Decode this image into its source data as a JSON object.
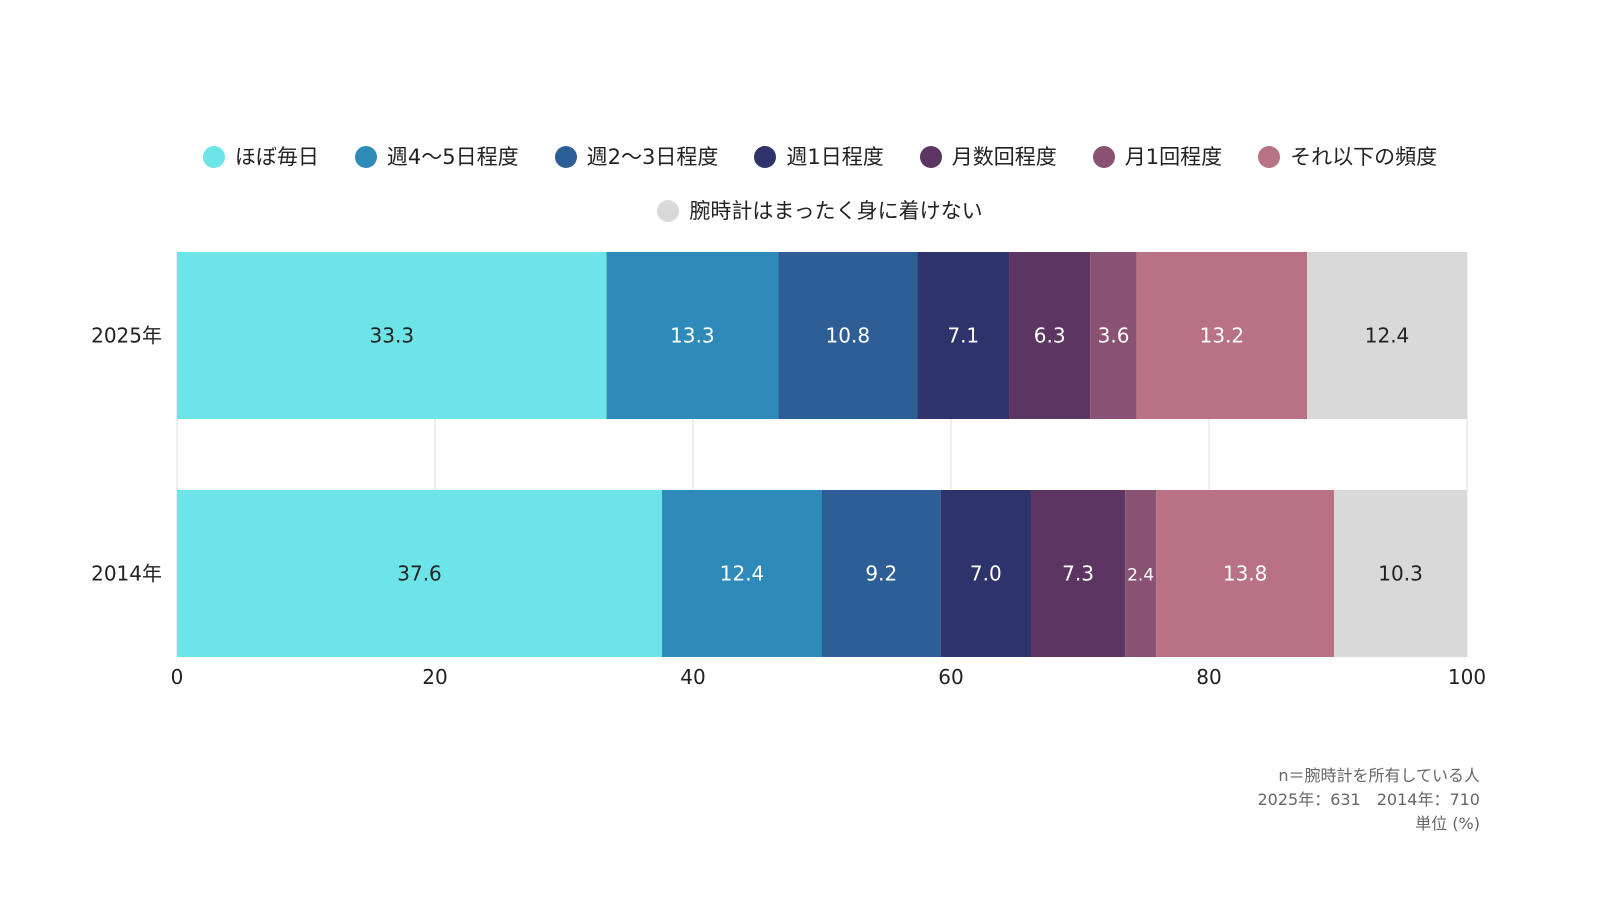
{
  "chart_data": {
    "type": "bar",
    "orientation": "horizontal",
    "stacked": true,
    "categories": [
      "2025年",
      "2014年"
    ],
    "series": [
      {
        "name": "ほぼ毎日",
        "color": "#6ce4e8",
        "label_color": "#222222",
        "values": [
          33.3,
          37.6
        ],
        "labels": [
          "33.3",
          "37.6"
        ]
      },
      {
        "name": "週4〜5日程度",
        "color": "#2e8ab8",
        "label_color": "#ffffff",
        "values": [
          13.3,
          12.4
        ],
        "labels": [
          "13.3",
          "12.4"
        ]
      },
      {
        "name": "週2〜3日程度",
        "color": "#2e5e96",
        "label_color": "#ffffff",
        "values": [
          10.8,
          9.2
        ],
        "labels": [
          "10.8",
          "9.2"
        ]
      },
      {
        "name": "週1日程度",
        "color": "#2e336b",
        "label_color": "#ffffff",
        "values": [
          7.1,
          7.0
        ],
        "labels": [
          "7.1",
          "7.0"
        ]
      },
      {
        "name": "月数回程度",
        "color": "#5c3562",
        "label_color": "#ffffff",
        "values": [
          6.3,
          7.3
        ],
        "labels": [
          "6.3",
          "7.3"
        ]
      },
      {
        "name": "月1回程度",
        "color": "#8a5272",
        "label_color": "#ffffff",
        "values": [
          3.6,
          2.4
        ],
        "labels": [
          "3.6",
          "2.4"
        ]
      },
      {
        "name": "それ以下の頻度",
        "color": "#b87284",
        "label_color": "#ffffff",
        "values": [
          13.2,
          13.8
        ],
        "labels": [
          "13.2",
          "13.8"
        ]
      },
      {
        "name": "腕時計はまったく身に着けない",
        "color": "#d9d9d9",
        "label_color": "#222222",
        "values": [
          12.4,
          10.3
        ],
        "labels": [
          "12.4",
          "10.3"
        ]
      }
    ],
    "xlim": [
      0,
      100
    ],
    "xticks": [
      "0",
      "20",
      "40",
      "60",
      "80",
      "100"
    ],
    "grid": true,
    "legend_position": "top"
  },
  "footnote": {
    "line1": "n＝腕時計を所有している人",
    "line2": "2025年：631　2014年：710",
    "line3": "単位 (%)"
  }
}
